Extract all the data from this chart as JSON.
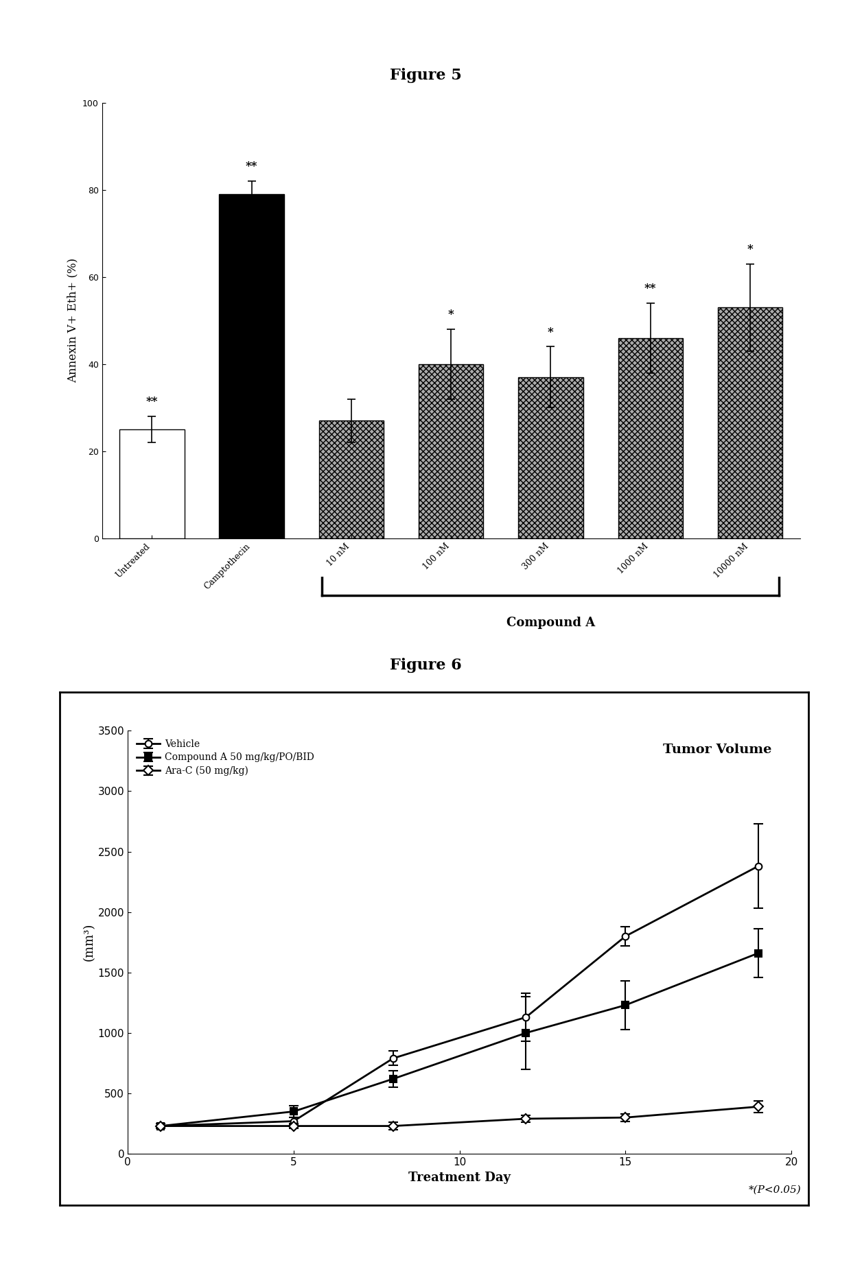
{
  "fig5_title": "Figure 5",
  "fig5_categories": [
    "Untreated",
    "Camptothecin",
    "10 nM",
    "100 nM",
    "300 nM",
    "1000 nM",
    "10000 nM"
  ],
  "fig5_values": [
    25,
    79,
    27,
    40,
    37,
    46,
    53
  ],
  "fig5_errors": [
    3,
    3,
    5,
    8,
    7,
    8,
    10
  ],
  "fig5_ylabel": "Annexin V+ Eth+ (%)",
  "fig5_ylim": [
    0,
    100
  ],
  "fig5_yticks": [
    0,
    20,
    40,
    60,
    80,
    100
  ],
  "fig5_sig_labels": [
    "**",
    "**",
    "",
    "*",
    "*",
    "**",
    "*"
  ],
  "fig5_compound_label": "Compound A",
  "fig6_title": "Figure 6",
  "fig6_inner_title": "Tumor Volume",
  "fig6_ylabel": "(mm³)",
  "fig6_xlabel": "Treatment Day",
  "fig6_ylim": [
    0,
    3500
  ],
  "fig6_yticks": [
    0,
    500,
    1000,
    1500,
    2000,
    2500,
    3000,
    3500
  ],
  "fig6_xlim": [
    0,
    20
  ],
  "fig6_xticks": [
    0,
    5,
    10,
    15,
    20
  ],
  "fig6_days": [
    1,
    5,
    8,
    12,
    15,
    19
  ],
  "fig6_vehicle_mean": [
    230,
    270,
    790,
    1130,
    1800,
    2380
  ],
  "fig6_vehicle_err": [
    20,
    30,
    60,
    200,
    80,
    350
  ],
  "fig6_compoundA_mean": [
    230,
    350,
    620,
    1000,
    1230,
    1660
  ],
  "fig6_compoundA_err": [
    20,
    50,
    70,
    300,
    200,
    200
  ],
  "fig6_araC_mean": [
    230,
    230,
    230,
    290,
    300,
    390
  ],
  "fig6_araC_err": [
    20,
    20,
    30,
    30,
    30,
    50
  ],
  "fig6_legend": [
    "Vehicle",
    "Compound A 50 mg/kg/PO/BID",
    "Ara-C (50 mg/kg)"
  ],
  "fig6_note": "*(P<0.05)"
}
